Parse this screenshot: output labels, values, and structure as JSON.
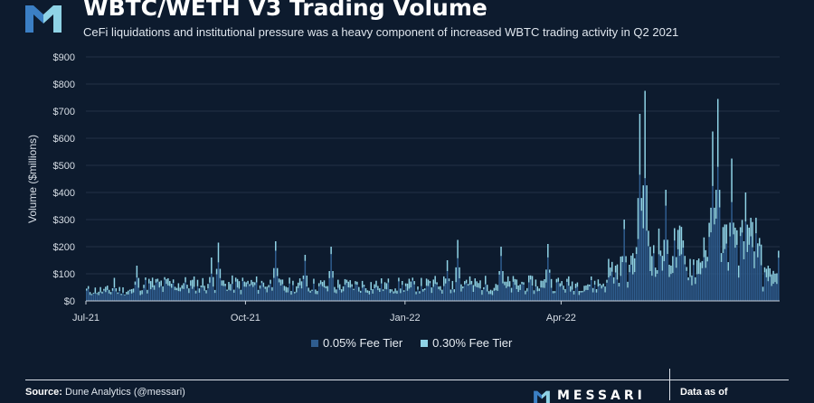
{
  "header": {
    "title": "WBTC/WETH V3 Trading Volume",
    "subtitle": "CeFi liquidations and institutional pressure was a heavy component of increased WBTC trading activity in Q2 2021"
  },
  "footer": {
    "source_label": "Source:",
    "source_value": "Dune Analytics (@messari)",
    "brand": "MESSARI",
    "data_as_of": "Data as of"
  },
  "colors": {
    "background": "#0d1b2e",
    "fee_005": "#2f5d8f",
    "fee_030": "#8fd3e6",
    "grid": "#223246"
  },
  "chart_data": {
    "type": "bar",
    "stacked": true,
    "ylabel": "Volume ($millions)",
    "ylim": [
      0,
      900
    ],
    "yticks": [
      "$0",
      "$100",
      "$200",
      "$300",
      "$400",
      "$500",
      "$600",
      "$700",
      "$800",
      "$900"
    ],
    "xtick_labels": [
      "Jul-21",
      "Oct-21",
      "Jan-22",
      "Apr-22"
    ],
    "xtick_positions": [
      0,
      92,
      184,
      274
    ],
    "n_days": 400,
    "grid": "horizontal",
    "legend_position": "bottom",
    "series": [
      {
        "name": "0.05% Fee Tier"
      },
      {
        "name": "0.30% Fee Tier"
      }
    ],
    "peaks_total": [
      {
        "day": 16,
        "value": 85
      },
      {
        "day": 29,
        "value": 130
      },
      {
        "day": 72,
        "value": 160
      },
      {
        "day": 76,
        "value": 215
      },
      {
        "day": 109,
        "value": 220
      },
      {
        "day": 126,
        "value": 170
      },
      {
        "day": 141,
        "value": 200
      },
      {
        "day": 208,
        "value": 150
      },
      {
        "day": 214,
        "value": 225
      },
      {
        "day": 239,
        "value": 200
      },
      {
        "day": 266,
        "value": 210
      },
      {
        "day": 310,
        "value": 300
      },
      {
        "day": 319,
        "value": 690
      },
      {
        "day": 322,
        "value": 775
      },
      {
        "day": 334,
        "value": 410
      },
      {
        "day": 361,
        "value": 625
      },
      {
        "day": 364,
        "value": 745
      },
      {
        "day": 372,
        "value": 525
      },
      {
        "day": 380,
        "value": 400
      },
      {
        "day": 394,
        "value": 120
      },
      {
        "day": 399,
        "value": 185
      }
    ]
  }
}
